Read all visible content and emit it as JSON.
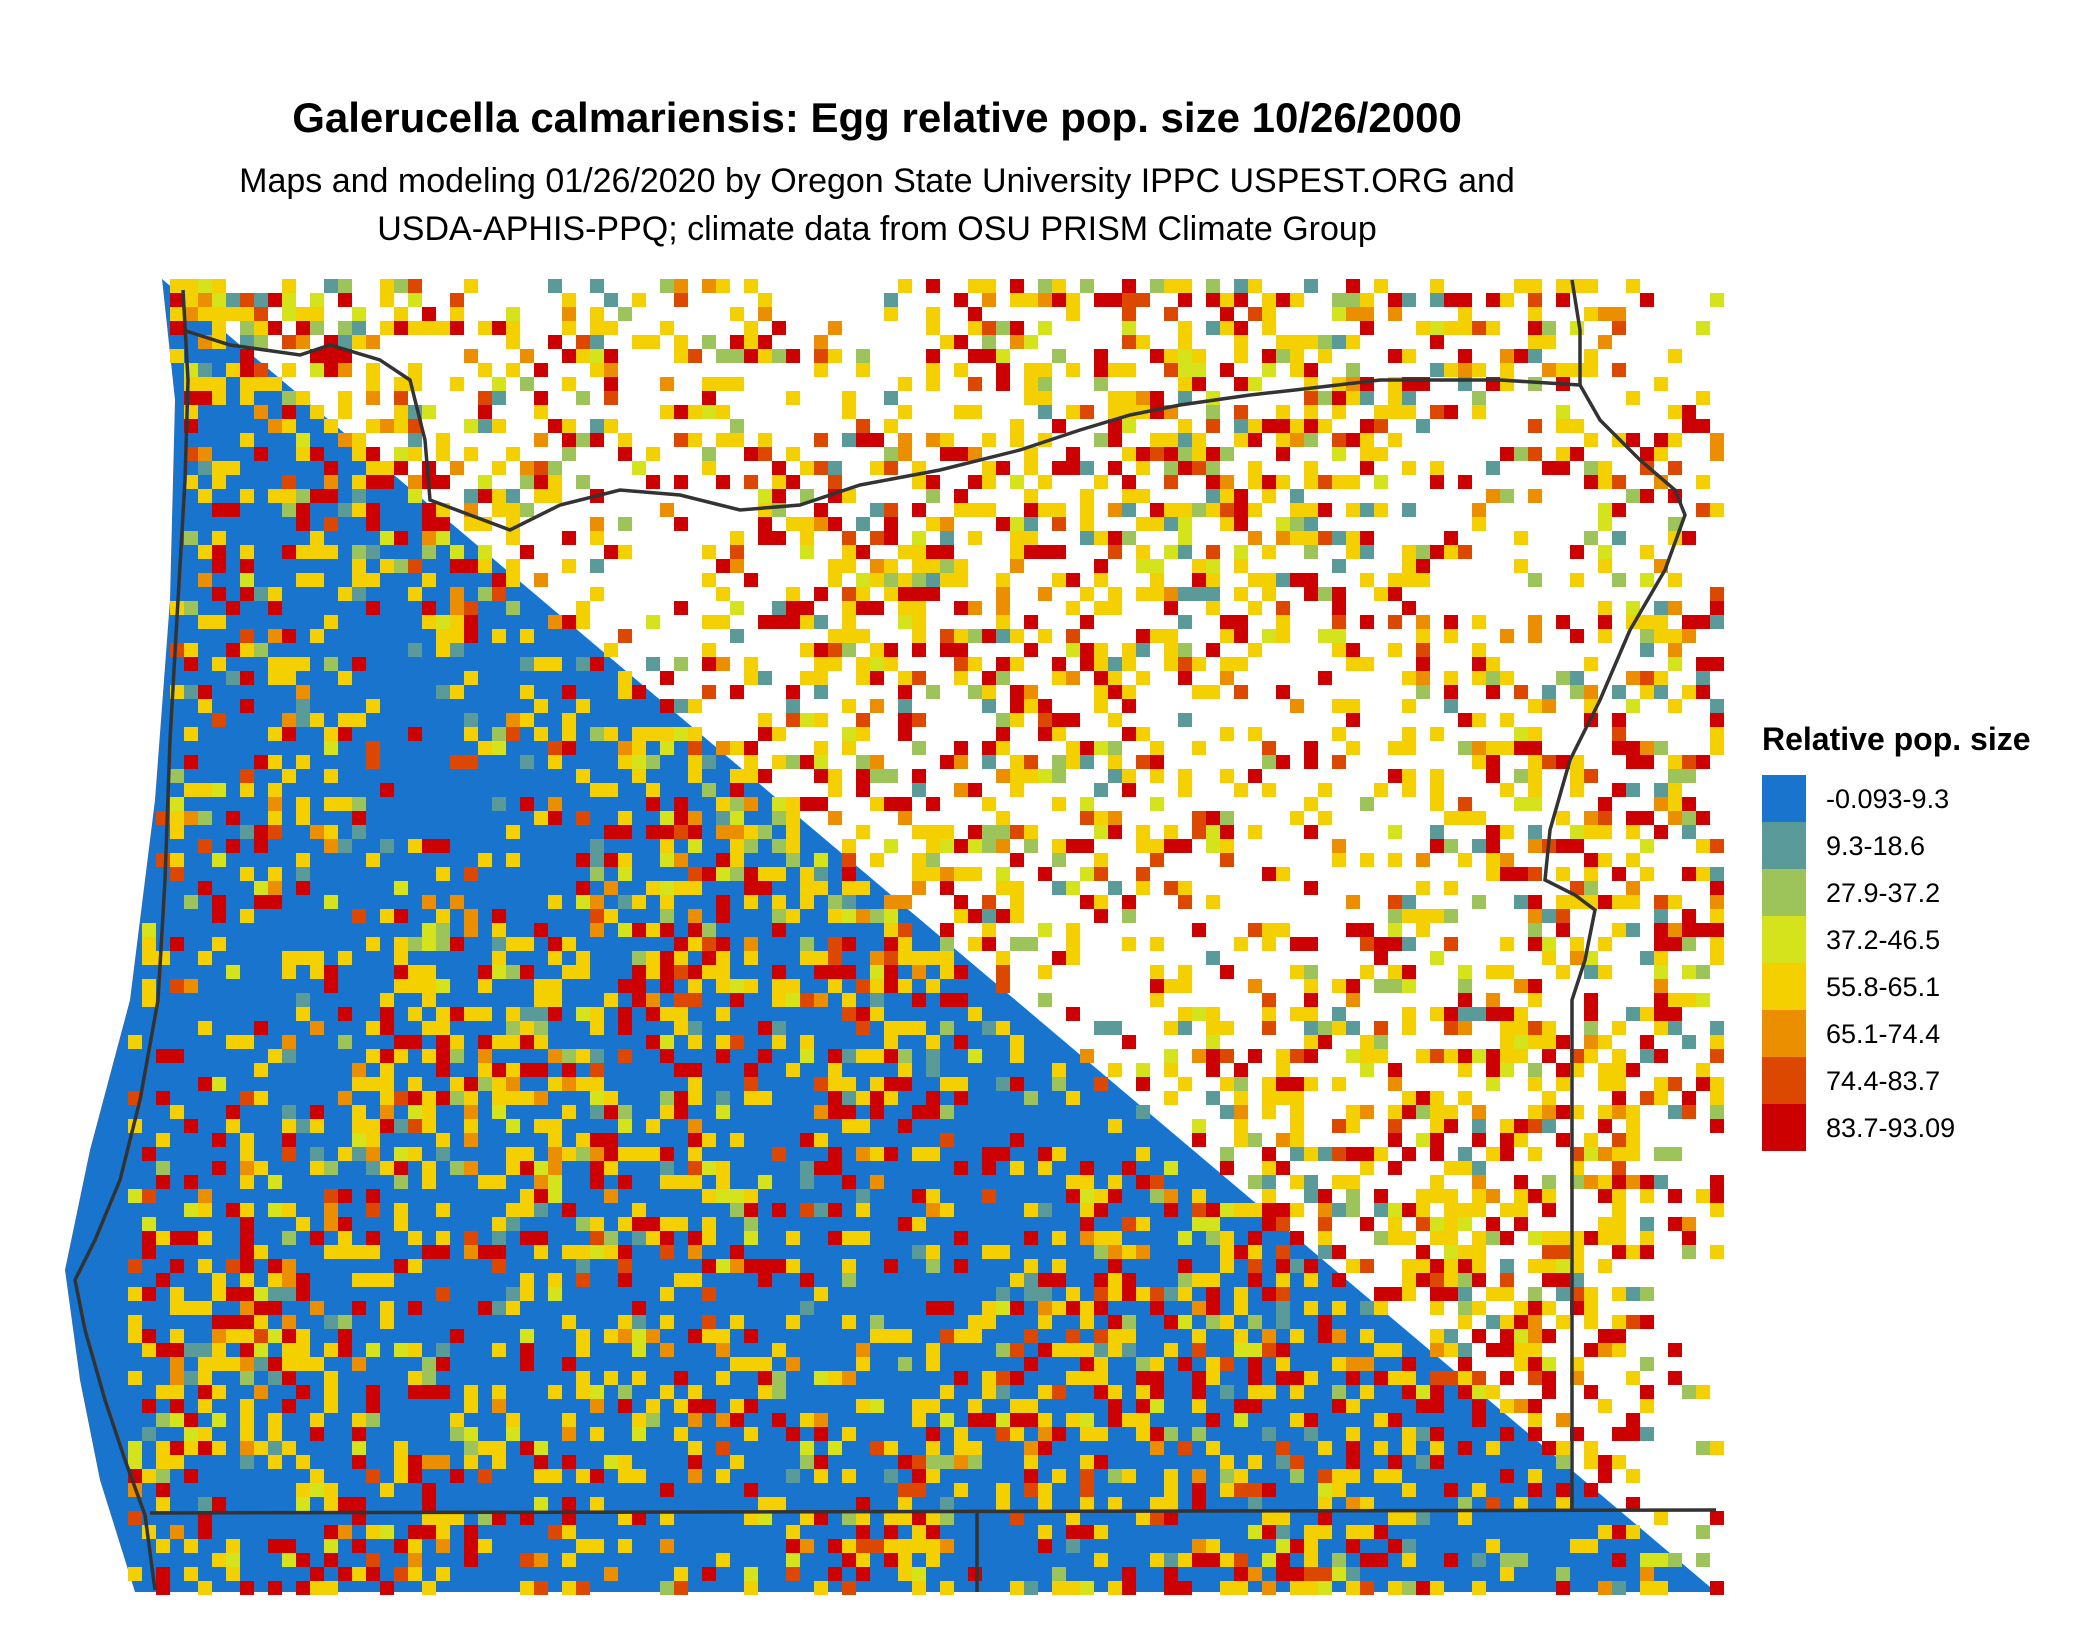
{
  "title": "Galerucella calmariensis: Egg relative pop. size 10/26/2000",
  "subtitle": [
    "Maps and modeling 01/26/2020 by Oregon State University IPPC USPEST.ORG and",
    "USDA-APHIS-PPQ; climate data from OSU PRISM Climate Group"
  ],
  "legend": {
    "title": "Relative pop. size",
    "items": [
      {
        "label": "-0.093-9.3",
        "color": "#1874cd"
      },
      {
        "label": "9.3-18.6",
        "color": "#5a9a98"
      },
      {
        "label": "27.9-37.2",
        "color": "#9dc35b"
      },
      {
        "label": "37.2-46.5",
        "color": "#d4e31c"
      },
      {
        "label": "55.8-65.1",
        "color": "#f5d000"
      },
      {
        "label": "65.1-74.4",
        "color": "#eb8e00"
      },
      {
        "label": "74.4-83.7",
        "color": "#dc4800"
      },
      {
        "label": "83.7-93.09",
        "color": "#cc0000"
      }
    ]
  }
}
